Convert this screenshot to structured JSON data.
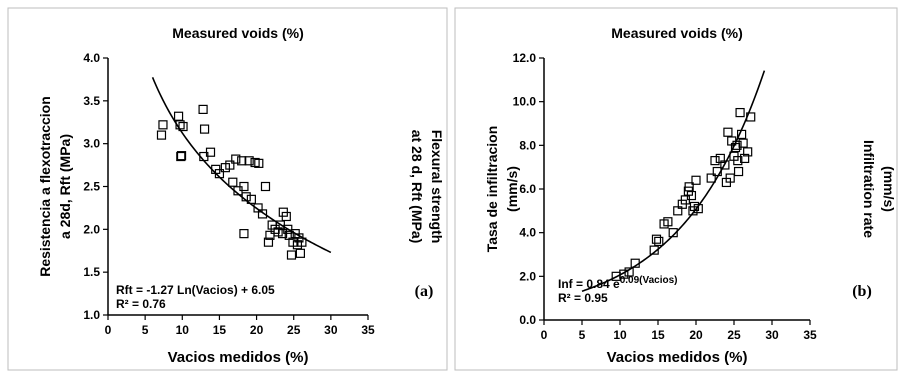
{
  "chart_data": [
    {
      "type": "scatter",
      "panel_label": "(a)",
      "top_label": "Measured voids (%)",
      "xlabel": "Vacios medidos (%)",
      "ylabel": [
        "Resistencia a flexotraccion",
        "a 28d, Rft (MPa)"
      ],
      "ylabel_right": [
        "Flexural strength",
        "at 28 d, Rft (MPa)"
      ],
      "xlim": [
        0,
        35
      ],
      "ylim": [
        1.0,
        4.0
      ],
      "x_ticks": [
        "0",
        "5",
        "10",
        "15",
        "20",
        "25",
        "30",
        "35"
      ],
      "y_ticks": [
        "1.0",
        "1.5",
        "2.0",
        "2.5",
        "3.0",
        "3.5",
        "4.0"
      ],
      "equation": "Rft = -1.27 Ln(Vacios) + 6.05",
      "r2": "R² = 0.76",
      "fit": {
        "model": "log",
        "a": -1.27,
        "b": 6.05,
        "x_range": [
          6,
          30
        ]
      },
      "points": [
        [
          7.2,
          3.1
        ],
        [
          7.4,
          3.22
        ],
        [
          9.5,
          3.32
        ],
        [
          9.7,
          3.22
        ],
        [
          10.1,
          3.2
        ],
        [
          9.8,
          2.85
        ],
        [
          9.9,
          2.86
        ],
        [
          12.8,
          3.4
        ],
        [
          13.0,
          3.17
        ],
        [
          12.9,
          2.85
        ],
        [
          13.8,
          2.9
        ],
        [
          14.5,
          2.7
        ],
        [
          15.0,
          2.65
        ],
        [
          15.8,
          2.72
        ],
        [
          16.4,
          2.75
        ],
        [
          16.8,
          2.55
        ],
        [
          17.2,
          2.82
        ],
        [
          17.5,
          2.45
        ],
        [
          18.0,
          2.8
        ],
        [
          18.3,
          2.5
        ],
        [
          18.6,
          2.38
        ],
        [
          19.0,
          2.8
        ],
        [
          19.3,
          2.35
        ],
        [
          19.8,
          2.78
        ],
        [
          20.3,
          2.77
        ],
        [
          18.3,
          1.95
        ],
        [
          20.2,
          2.25
        ],
        [
          20.8,
          2.18
        ],
        [
          21.2,
          2.5
        ],
        [
          21.6,
          1.85
        ],
        [
          21.8,
          1.93
        ],
        [
          22.1,
          2.05
        ],
        [
          22.5,
          2.0
        ],
        [
          22.9,
          1.97
        ],
        [
          23.2,
          2.05
        ],
        [
          23.5,
          1.95
        ],
        [
          23.6,
          2.2
        ],
        [
          24.0,
          2.15
        ],
        [
          24.2,
          2.0
        ],
        [
          24.4,
          1.93
        ],
        [
          24.7,
          1.7
        ],
        [
          24.9,
          1.85
        ],
        [
          25.2,
          1.95
        ],
        [
          25.5,
          1.82
        ],
        [
          25.7,
          1.9
        ],
        [
          25.9,
          1.72
        ],
        [
          26.1,
          1.85
        ]
      ]
    },
    {
      "type": "scatter",
      "panel_label": "(b)",
      "top_label": "Measured voids (%)",
      "xlabel": "Vacios medidos (%)",
      "ylabel": [
        "Tasa de infiltracion",
        "(mm/s)"
      ],
      "ylabel_right": [
        "Infiltration rate",
        "(mm/s)"
      ],
      "xlim": [
        0,
        35
      ],
      "ylim": [
        0.0,
        12.0
      ],
      "x_ticks": [
        "0",
        "5",
        "10",
        "15",
        "20",
        "25",
        "30",
        "35"
      ],
      "y_ticks": [
        "0.0",
        "2.0",
        "4.0",
        "6.0",
        "8.0",
        "10.0",
        "12.0"
      ],
      "equation_base": "Inf = 0.84 e",
      "equation_exp": "0.09(Vacios)",
      "r2": "R² = 0.95",
      "fit": {
        "model": "exp",
        "a": 0.84,
        "b": 0.09,
        "x_range": [
          5,
          29
        ]
      },
      "points": [
        [
          9.5,
          2.0
        ],
        [
          10.5,
          2.1
        ],
        [
          11.2,
          2.2
        ],
        [
          12.0,
          2.6
        ],
        [
          14.5,
          3.2
        ],
        [
          14.8,
          3.7
        ],
        [
          15.1,
          3.6
        ],
        [
          15.8,
          4.4
        ],
        [
          16.3,
          4.5
        ],
        [
          17.0,
          4.0
        ],
        [
          17.6,
          5.0
        ],
        [
          18.2,
          5.3
        ],
        [
          18.6,
          5.5
        ],
        [
          19.0,
          5.9
        ],
        [
          19.1,
          6.1
        ],
        [
          19.4,
          5.7
        ],
        [
          19.6,
          5.0
        ],
        [
          19.8,
          5.2
        ],
        [
          20.0,
          6.4
        ],
        [
          20.3,
          5.1
        ],
        [
          22.0,
          6.5
        ],
        [
          22.5,
          7.3
        ],
        [
          22.8,
          6.8
        ],
        [
          23.2,
          7.4
        ],
        [
          23.8,
          7.1
        ],
        [
          24.0,
          6.3
        ],
        [
          24.2,
          8.6
        ],
        [
          24.5,
          6.5
        ],
        [
          24.7,
          8.2
        ],
        [
          25.0,
          7.5
        ],
        [
          25.2,
          7.9
        ],
        [
          25.4,
          8.0
        ],
        [
          25.5,
          7.3
        ],
        [
          25.6,
          6.8
        ],
        [
          25.8,
          9.5
        ],
        [
          26.0,
          8.5
        ],
        [
          26.2,
          8.1
        ],
        [
          26.4,
          7.4
        ],
        [
          26.8,
          7.7
        ],
        [
          27.2,
          9.3
        ]
      ]
    }
  ]
}
